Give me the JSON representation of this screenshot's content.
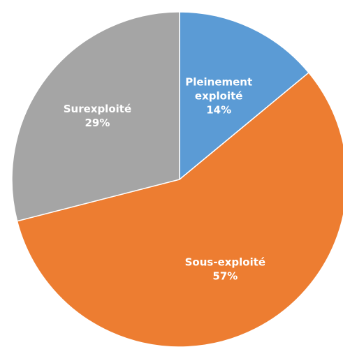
{
  "chart_data": {
    "type": "pie",
    "title": "",
    "slices": [
      {
        "label_lines": [
          "Pleinement",
          "exploité"
        ],
        "percent_label": "14%",
        "value": 14,
        "color": "#5b9bd5",
        "text_color": "#ffffff"
      },
      {
        "label_lines": [
          "Sous-exploité"
        ],
        "percent_label": "57%",
        "value": 57,
        "color": "#ed7d31",
        "text_color": "#ffffff"
      },
      {
        "label_lines": [
          "Surexploité"
        ],
        "percent_label": "29%",
        "value": 29,
        "color": "#a5a5a5",
        "text_color": "#ffffff"
      }
    ],
    "legend": "none"
  }
}
